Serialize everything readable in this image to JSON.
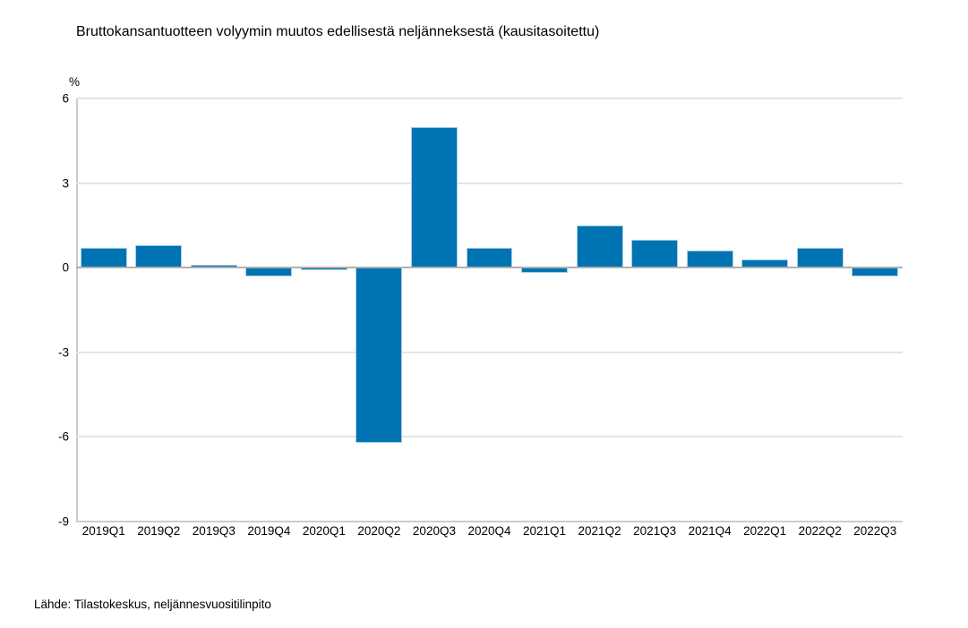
{
  "title": "Bruttokansantuotteen volyymin muutos edellisestä neljänneksestä (kausitasoitettu)",
  "unit_label": "%",
  "source": "Lähde: Tilastokeskus, neljännesvuositilinpito",
  "colors": {
    "bar": "#0073b2",
    "bar_border": "#aacde6",
    "gridline": "#e4e4e4",
    "zero_line": "#b0b0b0",
    "axis_line": "#cccccc",
    "text": "#000000"
  },
  "chart_data": {
    "type": "bar",
    "categories": [
      "2019Q1",
      "2019Q2",
      "2019Q3",
      "2019Q4",
      "2020Q1",
      "2020Q2",
      "2020Q3",
      "2020Q4",
      "2021Q1",
      "2021Q2",
      "2021Q3",
      "2021Q4",
      "2022Q1",
      "2022Q2",
      "2022Q3"
    ],
    "values": [
      0.7,
      0.8,
      0.1,
      -0.3,
      -0.1,
      -6.2,
      5.0,
      0.7,
      -0.2,
      1.5,
      1.0,
      0.6,
      0.3,
      0.7,
      -0.3
    ],
    "title": "Bruttokansantuotteen volyymin muutos edellisestä neljänneksestä (kausitasoitettu)",
    "xlabel": "",
    "ylabel": "%",
    "ylim": [
      -9,
      6
    ],
    "yticks": [
      6,
      3,
      0,
      -3,
      -6,
      -9
    ],
    "grid": true,
    "legend": false,
    "bar_color": "#0073b2"
  }
}
